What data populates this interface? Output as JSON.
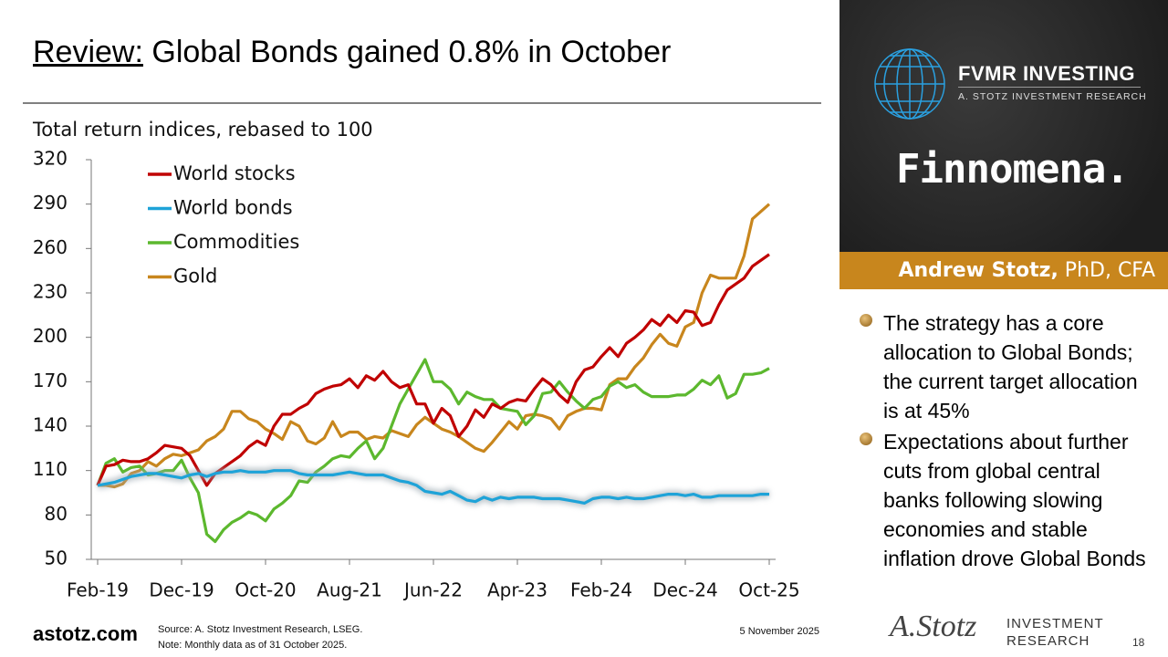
{
  "slide": {
    "title_lead": "Review:",
    "title_rest": " Global Bonds gained 0.8% in October"
  },
  "chart_data": {
    "type": "line",
    "title": "Total return indices, rebased to 100",
    "categories": [
      "Feb-19",
      null,
      null,
      null,
      null,
      null,
      null,
      null,
      null,
      null,
      "Dec-19",
      null,
      null,
      null,
      null,
      null,
      null,
      null,
      null,
      null,
      "Oct-20",
      null,
      null,
      null,
      null,
      null,
      null,
      null,
      null,
      null,
      "Aug-21",
      null,
      null,
      null,
      null,
      null,
      null,
      null,
      null,
      null,
      "Jun-22",
      null,
      null,
      null,
      null,
      null,
      null,
      null,
      null,
      null,
      "Apr-23",
      null,
      null,
      null,
      null,
      null,
      null,
      null,
      null,
      null,
      "Feb-24",
      null,
      null,
      null,
      null,
      null,
      null,
      null,
      null,
      null,
      "Dec-24",
      null,
      null,
      null,
      null,
      null,
      null,
      null,
      null,
      null,
      "Oct-25"
    ],
    "series": [
      {
        "name": "World stocks",
        "color": "#c00000",
        "values": [
          100,
          113,
          114,
          117,
          116,
          116,
          118,
          122,
          127,
          126,
          125,
          120,
          110,
          100,
          108,
          112,
          116,
          120,
          126,
          130,
          127,
          140,
          148,
          148,
          152,
          155,
          162,
          165,
          167,
          168,
          172,
          166,
          174,
          171,
          177,
          170,
          166,
          168,
          155,
          155,
          142,
          152,
          147,
          133,
          140,
          151,
          146,
          155,
          152,
          156,
          158,
          157,
          165,
          172,
          168,
          161,
          156,
          170,
          178,
          180,
          187,
          193,
          187,
          196,
          200,
          205,
          212,
          208,
          215,
          210,
          218,
          217,
          208,
          210,
          222,
          232,
          236,
          240,
          248,
          252,
          256
        ]
      },
      {
        "name": "World bonds",
        "color": "#1ea3d8",
        "glow": true,
        "values": [
          100,
          101,
          102,
          104,
          106,
          107,
          108,
          108,
          107,
          106,
          105,
          107,
          108,
          106,
          108,
          109,
          109,
          110,
          109,
          109,
          109,
          110,
          110,
          110,
          108,
          107,
          107,
          107,
          107,
          108,
          109,
          108,
          107,
          107,
          107,
          105,
          103,
          102,
          100,
          96,
          95,
          94,
          96,
          93,
          90,
          89,
          92,
          90,
          92,
          91,
          92,
          92,
          92,
          91,
          91,
          91,
          90,
          89,
          88,
          91,
          92,
          92,
          91,
          92,
          91,
          91,
          92,
          93,
          94,
          94,
          93,
          94,
          92,
          92,
          93,
          93,
          93,
          93,
          93,
          94,
          94
        ]
      },
      {
        "name": "Commodities",
        "color": "#5cb82e",
        "values": [
          100,
          115,
          118,
          109,
          112,
          113,
          107,
          108,
          110,
          110,
          117,
          105,
          95,
          67,
          62,
          70,
          75,
          78,
          82,
          80,
          76,
          84,
          88,
          93,
          103,
          102,
          109,
          113,
          118,
          120,
          119,
          125,
          130,
          118,
          125,
          140,
          155,
          165,
          175,
          185,
          170,
          170,
          165,
          155,
          163,
          160,
          158,
          158,
          152,
          151,
          150,
          141,
          147,
          162,
          163,
          170,
          163,
          157,
          152,
          158,
          160,
          167,
          170,
          166,
          168,
          163,
          160,
          160,
          160,
          161,
          161,
          165,
          171,
          168,
          174,
          159,
          162,
          175,
          175,
          176,
          179
        ]
      },
      {
        "name": "Gold",
        "color": "#c8861d",
        "values": [
          100,
          100,
          99,
          101,
          108,
          110,
          116,
          113,
          118,
          121,
          120,
          122,
          124,
          130,
          133,
          138,
          150,
          150,
          145,
          143,
          138,
          135,
          131,
          143,
          140,
          130,
          128,
          132,
          143,
          133,
          136,
          136,
          131,
          133,
          132,
          137,
          135,
          133,
          141,
          146,
          142,
          138,
          136,
          133,
          129,
          125,
          123,
          129,
          136,
          143,
          138,
          147,
          148,
          147,
          145,
          138,
          147,
          150,
          152,
          152,
          151,
          168,
          172,
          172,
          180,
          186,
          195,
          202,
          196,
          194,
          207,
          210,
          230,
          242,
          240,
          240,
          240,
          255,
          280,
          285,
          290
        ]
      }
    ],
    "ylim": [
      50,
      320
    ],
    "yticks": [
      50,
      80,
      110,
      140,
      170,
      200,
      230,
      260,
      290,
      320
    ],
    "grid": false,
    "legend": "top-left"
  },
  "sidebar": {
    "brand": "FVMR INVESTING",
    "brand_sub": "A. STOTZ INVESTMENT RESEARCH",
    "partner": "Finnomena.",
    "author_name": "Andrew Stotz,",
    "author_cred": " PhD, CFA",
    "bullets": [
      "The strategy has a core allocation to Global Bonds; the current target allocation is at 45%",
      "Expectations about further cuts from global central banks following slowing economies and stable inflation drove Global Bonds"
    ]
  },
  "footer": {
    "site": "astotz.com",
    "source": "Source: A. Stotz Investment Research, LSEG.",
    "note": "Note: Monthly data as of 31 October 2025.",
    "date": "5 November 2025",
    "signature": "A.Stotz",
    "logo_line1": "INVESTMENT",
    "logo_line2": "RESEARCH",
    "page": "18"
  }
}
